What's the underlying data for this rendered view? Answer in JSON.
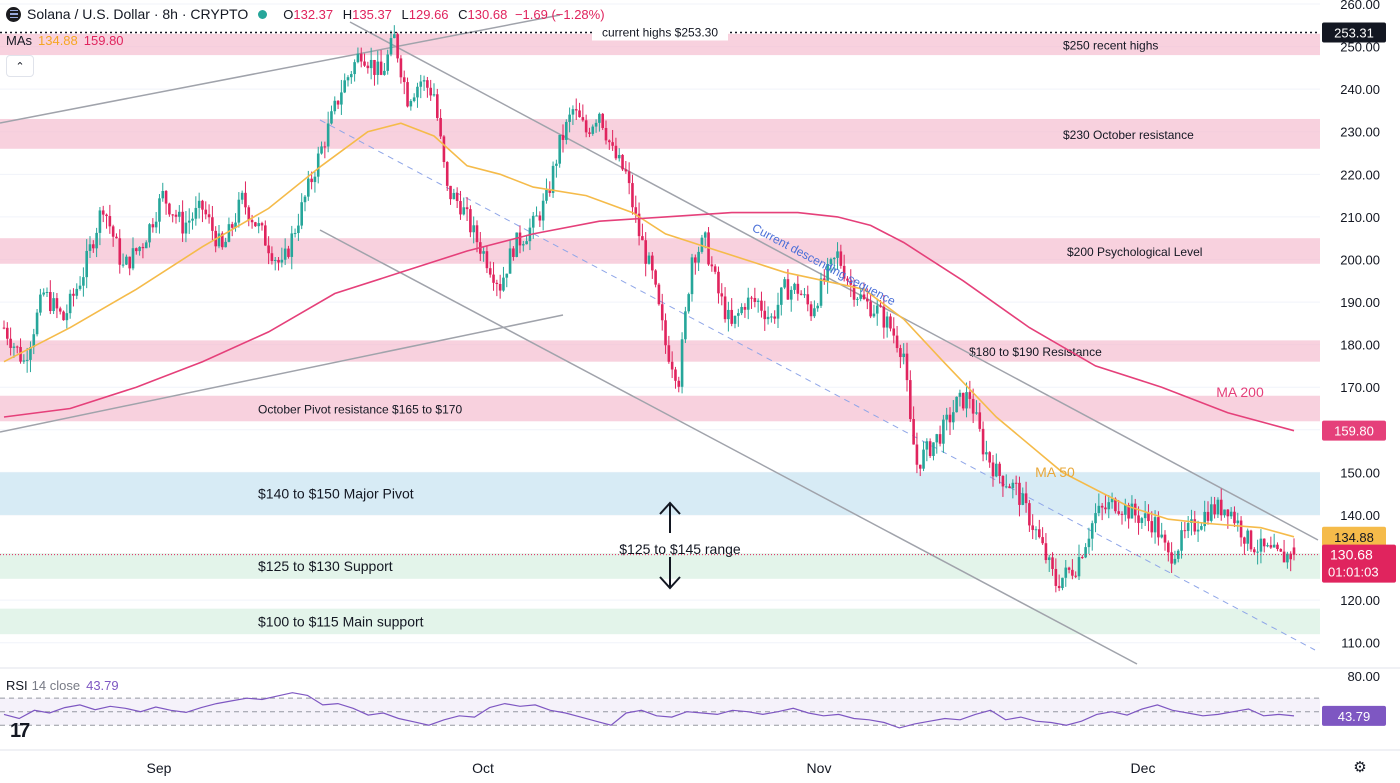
{
  "header": {
    "symbol": "Solana / U.S. Dollar · 8h · CRYPTO",
    "o_label": "O",
    "o": "132.37",
    "h_label": "H",
    "h": "135.37",
    "l_label": "L",
    "l": "129.66",
    "c_label": "C",
    "c": "130.68",
    "change": "−1.69 (−1.28%)"
  },
  "mas_legend": {
    "label": "MAs",
    "ma50": "134.88",
    "ma200": "159.80"
  },
  "rsi_legend": {
    "label": "RSI",
    "params": "14 close",
    "value": "43.79"
  },
  "colors": {
    "up": "#26a69a",
    "down": "#e0245e",
    "ma50": "#f5bb4a",
    "ma200": "#e5407a",
    "resistance_zone": "#f6c1d3",
    "pivot_zone": "#d7ebf5",
    "support_zone": "#e3f4ea",
    "rsi": "#7e57c2",
    "trendline": "#a0a3ab",
    "dash_line": "#8fa6e8"
  },
  "chart_data": {
    "type": "candlestick",
    "title": "Solana / U.S. Dollar · 8h · CRYPTO",
    "ylim": [
      105,
      260
    ],
    "y_ticks": [
      110,
      120,
      130,
      140,
      150,
      160,
      170,
      180,
      190,
      200,
      210,
      220,
      230,
      240,
      250,
      260
    ],
    "x_ticks": [
      "Sep",
      "Oct",
      "Nov",
      "Dec"
    ],
    "close_path": [
      [
        0,
        184
      ],
      [
        6,
        176
      ],
      [
        12,
        192
      ],
      [
        18,
        186
      ],
      [
        24,
        197
      ],
      [
        30,
        213
      ],
      [
        36,
        198
      ],
      [
        42,
        204
      ],
      [
        48,
        215
      ],
      [
        54,
        208
      ],
      [
        60,
        212
      ],
      [
        66,
        202
      ],
      [
        72,
        214
      ],
      [
        78,
        206
      ],
      [
        84,
        198
      ],
      [
        90,
        212
      ],
      [
        96,
        226
      ],
      [
        102,
        240
      ],
      [
        108,
        249
      ],
      [
        114,
        243
      ],
      [
        118,
        252
      ],
      [
        122,
        238
      ],
      [
        126,
        242
      ],
      [
        130,
        239
      ],
      [
        134,
        216
      ],
      [
        138,
        213
      ],
      [
        142,
        206
      ],
      [
        146,
        200
      ],
      [
        150,
        194
      ],
      [
        154,
        203
      ],
      [
        160,
        208
      ],
      [
        164,
        214
      ],
      [
        168,
        227
      ],
      [
        172,
        235
      ],
      [
        176,
        230
      ],
      [
        180,
        235
      ],
      [
        184,
        225
      ],
      [
        188,
        220
      ],
      [
        192,
        206
      ],
      [
        196,
        196
      ],
      [
        200,
        180
      ],
      [
        204,
        172
      ],
      [
        208,
        201
      ],
      [
        212,
        204
      ],
      [
        216,
        192
      ],
      [
        220,
        184
      ],
      [
        224,
        190
      ],
      [
        228,
        190
      ],
      [
        232,
        186
      ],
      [
        236,
        193
      ],
      [
        240,
        193
      ],
      [
        244,
        188
      ],
      [
        248,
        195
      ],
      [
        252,
        201
      ],
      [
        256,
        194
      ],
      [
        260,
        190
      ],
      [
        264,
        188
      ],
      [
        268,
        184
      ],
      [
        272,
        178
      ],
      [
        274,
        161
      ],
      [
        276,
        152
      ],
      [
        280,
        156
      ],
      [
        284,
        160
      ],
      [
        288,
        166
      ],
      [
        292,
        168
      ],
      [
        296,
        156
      ],
      [
        300,
        150
      ],
      [
        306,
        146
      ],
      [
        312,
        136
      ],
      [
        318,
        124
      ],
      [
        324,
        128
      ],
      [
        330,
        140
      ],
      [
        336,
        143
      ],
      [
        342,
        140
      ],
      [
        348,
        138
      ],
      [
        352,
        130
      ],
      [
        358,
        136
      ],
      [
        364,
        141
      ],
      [
        370,
        142
      ],
      [
        376,
        134
      ],
      [
        380,
        132
      ],
      [
        386,
        130
      ],
      [
        390,
        131
      ]
    ],
    "ma50": {
      "name": "MA 50",
      "points": [
        [
          0,
          176
        ],
        [
          20,
          184
        ],
        [
          40,
          193
        ],
        [
          60,
          203
        ],
        [
          80,
          212
        ],
        [
          96,
          222
        ],
        [
          110,
          230
        ],
        [
          120,
          232
        ],
        [
          130,
          229
        ],
        [
          140,
          222
        ],
        [
          150,
          220
        ],
        [
          160,
          217
        ],
        [
          176,
          215
        ],
        [
          190,
          211
        ],
        [
          200,
          206
        ],
        [
          212,
          203
        ],
        [
          224,
          200
        ],
        [
          236,
          197
        ],
        [
          248,
          195
        ],
        [
          260,
          193
        ],
        [
          272,
          186
        ],
        [
          284,
          176
        ],
        [
          300,
          163
        ],
        [
          320,
          150
        ],
        [
          340,
          142
        ],
        [
          352,
          139
        ],
        [
          364,
          138
        ],
        [
          380,
          137
        ],
        [
          390,
          134.88
        ]
      ]
    },
    "ma200": {
      "name": "MA 200",
      "points": [
        [
          0,
          163
        ],
        [
          20,
          165
        ],
        [
          40,
          170
        ],
        [
          60,
          176
        ],
        [
          80,
          183
        ],
        [
          100,
          192
        ],
        [
          120,
          197
        ],
        [
          140,
          202
        ],
        [
          160,
          206
        ],
        [
          180,
          209
        ],
        [
          200,
          210
        ],
        [
          220,
          211
        ],
        [
          240,
          211
        ],
        [
          252,
          210
        ],
        [
          262,
          208
        ],
        [
          272,
          204
        ],
        [
          290,
          195
        ],
        [
          310,
          184
        ],
        [
          330,
          175
        ],
        [
          350,
          170
        ],
        [
          370,
          164
        ],
        [
          390,
          159.8
        ]
      ]
    },
    "rsi": {
      "ylim": [
        20,
        85
      ],
      "upper_band": 70,
      "mid": 50,
      "lower_band": 30,
      "values": [
        46,
        40,
        52,
        48,
        56,
        60,
        53,
        58,
        55,
        50,
        57,
        52,
        49,
        56,
        62,
        66,
        70,
        68,
        73,
        78,
        74,
        60,
        62,
        55,
        45,
        48,
        40,
        35,
        30,
        38,
        44,
        42,
        56,
        62,
        58,
        60,
        52,
        48,
        42,
        36,
        30,
        48,
        52,
        44,
        42,
        50,
        48,
        46,
        52,
        50,
        46,
        50,
        55,
        48,
        44,
        46,
        40,
        38,
        34,
        26,
        32,
        36,
        40,
        38,
        46,
        52,
        38,
        42,
        36,
        34,
        30,
        36,
        46,
        50,
        45,
        54,
        60,
        52,
        48,
        44,
        46,
        50,
        54,
        44,
        46,
        43.79
      ]
    },
    "zones": [
      {
        "name": "$250 recent highs",
        "from": 248,
        "to": 253,
        "kind": "resistance"
      },
      {
        "name": "$230 October resistance",
        "from": 226,
        "to": 233,
        "kind": "resistance"
      },
      {
        "name": "$200 Psychological Level",
        "from": 199,
        "to": 205,
        "kind": "resistance"
      },
      {
        "name": "$180 to $190 Resistance",
        "from": 176,
        "to": 181,
        "kind": "resistance"
      },
      {
        "name": "October Pivot resistance $165 to $170",
        "from": 162,
        "to": 168,
        "kind": "resistance"
      },
      {
        "name": "$140 to $150 Major Pivot",
        "from": 140,
        "to": 150,
        "kind": "pivot"
      },
      {
        "name": "$125 to $130 Support",
        "from": 125,
        "to": 131,
        "kind": "support"
      },
      {
        "name": "$100 to $115 Main support",
        "from": 112,
        "to": 118,
        "kind": "support"
      }
    ],
    "annotations": {
      "current_highs": "current highs $253.30",
      "range_label": "$125 to $145 range",
      "sequence_label": "Current descending sequence",
      "ma50_label": "MA 50",
      "ma200_label": "MA 200"
    },
    "price_tags": {
      "top": "253.31",
      "ma200": "159.80",
      "ma50": "134.88",
      "last": "130.68",
      "countdown": "01:01:03",
      "rsi": "43.79",
      "rsi_top_tick": "80.00"
    }
  }
}
